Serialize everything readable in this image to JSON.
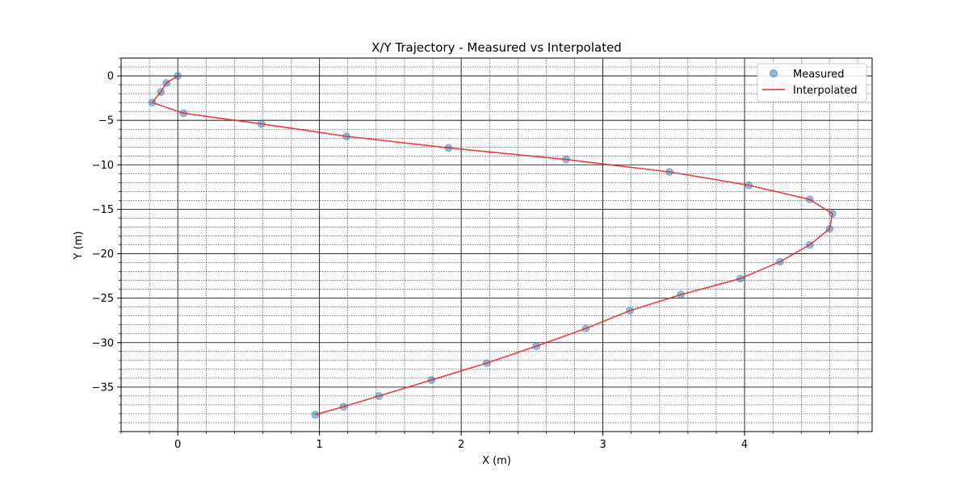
{
  "chart_data": {
    "type": "line",
    "title": "X/Y Trajectory - Measured vs Interpolated",
    "xlabel": "X (m)",
    "ylabel": "Y (m)",
    "xlim": [
      -0.4,
      4.9
    ],
    "ylim": [
      -40,
      2
    ],
    "xticks": [
      0,
      1,
      2,
      3,
      4
    ],
    "yticks": [
      0,
      -5,
      -10,
      -15,
      -20,
      -25,
      -30,
      -35
    ],
    "grid": "major and minor",
    "legend": "top-right",
    "series": [
      {
        "name": "Measured",
        "kind": "scatter",
        "color": "#1f77b4",
        "x": [
          0.0,
          -0.08,
          -0.12,
          -0.18,
          0.04,
          0.59,
          1.19,
          1.91,
          2.74,
          3.47,
          4.03,
          4.46,
          4.62,
          4.6,
          4.46,
          4.25,
          3.97,
          3.55,
          3.19,
          2.88,
          2.53,
          2.18,
          1.79,
          1.42,
          1.17,
          0.97
        ],
        "y": [
          0.0,
          -0.8,
          -1.8,
          -3.0,
          -4.2,
          -5.4,
          -6.8,
          -8.1,
          -9.4,
          -10.8,
          -12.3,
          -13.9,
          -15.5,
          -17.2,
          -19.0,
          -20.9,
          -22.8,
          -24.6,
          -26.4,
          -28.4,
          -30.4,
          -32.3,
          -34.2,
          -36.0,
          -37.2,
          -38.1
        ]
      },
      {
        "name": "Interpolated",
        "kind": "line",
        "color": "#e8282a",
        "x": [
          0.0,
          -0.08,
          -0.12,
          -0.18,
          0.04,
          0.59,
          1.19,
          1.91,
          2.74,
          3.47,
          4.03,
          4.46,
          4.62,
          4.6,
          4.46,
          4.25,
          3.97,
          3.55,
          3.19,
          2.88,
          2.53,
          2.18,
          1.79,
          1.42,
          1.17,
          0.97
        ],
        "y": [
          0.0,
          -0.8,
          -1.8,
          -3.0,
          -4.2,
          -5.4,
          -6.8,
          -8.1,
          -9.4,
          -10.8,
          -12.3,
          -13.9,
          -15.5,
          -17.2,
          -19.0,
          -20.9,
          -22.8,
          -24.6,
          -26.4,
          -28.4,
          -30.4,
          -32.3,
          -34.2,
          -36.0,
          -37.2,
          -38.1
        ]
      }
    ]
  }
}
